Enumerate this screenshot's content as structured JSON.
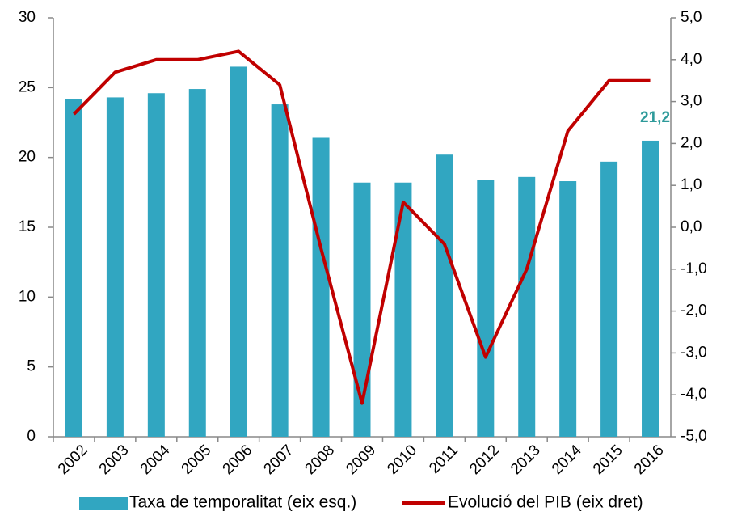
{
  "chart_data": {
    "type": "bar-line",
    "categories": [
      "2002",
      "2003",
      "2004",
      "2005",
      "2006",
      "2007",
      "2008",
      "2009",
      "2010",
      "2011",
      "2012",
      "2013",
      "2014",
      "2015",
      "2016"
    ],
    "series": [
      {
        "name": "Taxa de temporalitat (eix esq.)",
        "type": "bar",
        "color": "#31a6c1",
        "values": [
          24.2,
          24.3,
          24.6,
          24.9,
          26.5,
          23.8,
          21.4,
          18.2,
          18.2,
          20.2,
          18.4,
          18.6,
          18.3,
          19.7,
          21.2
        ],
        "value_labels": [
          null,
          null,
          null,
          null,
          null,
          null,
          null,
          null,
          null,
          null,
          null,
          null,
          null,
          null,
          "21,2"
        ],
        "value_label_color": "#2e9a9a"
      },
      {
        "name": "Evolució del PIB (eix dret)",
        "type": "line",
        "axis": "y2",
        "color": "#c00000",
        "values": [
          2.7,
          3.7,
          4.0,
          4.0,
          4.2,
          3.4,
          -0.5,
          -4.2,
          0.6,
          -0.4,
          -3.1,
          -1.0,
          2.3,
          3.5,
          3.5
        ]
      }
    ],
    "ylim": [
      0,
      30
    ],
    "yticks": [
      0,
      5,
      10,
      15,
      20,
      25,
      30
    ],
    "y2lim": [
      -5,
      5
    ],
    "y2ticks": [
      {
        "value": -5,
        "label": "-5,0"
      },
      {
        "value": -4,
        "label": "-4,0"
      },
      {
        "value": -3,
        "label": "-3,0"
      },
      {
        "value": -2,
        "label": "-2,0"
      },
      {
        "value": -1,
        "label": "-1,0"
      },
      {
        "value": 0,
        "label": "0,0"
      },
      {
        "value": 1,
        "label": "1,0"
      },
      {
        "value": 2,
        "label": "2,0"
      },
      {
        "value": 3,
        "label": "3,0"
      },
      {
        "value": 4,
        "label": "4,0"
      },
      {
        "value": 5,
        "label": "5,0"
      }
    ],
    "grid": false,
    "legend": "bottom"
  }
}
